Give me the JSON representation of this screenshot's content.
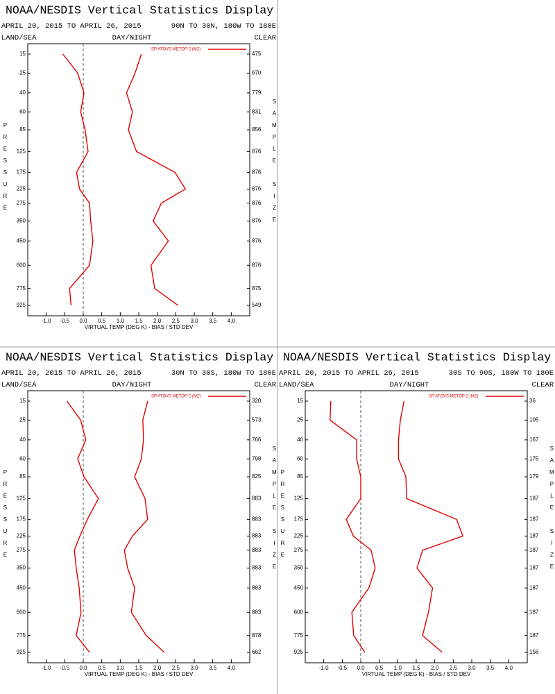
{
  "chart_data": [
    {
      "type": "profile",
      "title": "NOAA/NESDIS Vertical Statistics Display",
      "date_range": "APRIL 20, 2015 TO APRIL 26, 2015",
      "region": "90N TO 30N, 180W TO 180E",
      "surface": "LAND/SEA",
      "time_of_day": "DAY/NIGHT",
      "sky": "CLEAR",
      "y_label": "PRESSURE",
      "y2_label": "SAMPLE SIZE",
      "x_label": "VIRTUAL TEMP (DEG K) - BIAS / STD DEV",
      "levels": [
        15,
        25,
        40,
        60,
        85,
        125,
        175,
        225,
        275,
        350,
        450,
        600,
        775,
        925
      ],
      "sample_size": [
        475,
        670,
        779,
        831,
        856,
        876,
        876,
        876,
        876,
        876,
        876,
        876,
        875,
        549
      ],
      "xlim": [
        -1.5,
        4.5
      ],
      "xticks": [
        {
          "value": -1,
          "label": "-1.0"
        },
        {
          "value": -0.5,
          "label": "-0.5"
        },
        {
          "value": 0,
          "label": "0.0"
        },
        {
          "value": 0.5,
          "label": "0.5"
        },
        {
          "value": 1,
          "label": "1.0"
        },
        {
          "value": 1.5,
          "label": "1.5"
        },
        {
          "value": 2,
          "label": "2.0"
        },
        {
          "value": 2.5,
          "label": "2.5"
        },
        {
          "value": 3,
          "label": "3.0"
        },
        {
          "value": 3.5,
          "label": "3.5"
        },
        {
          "value": 4,
          "label": "4.0"
        }
      ],
      "series": [
        {
          "name": "SP ATOVS METOP-2 (M2)",
          "color": "#e00000",
          "bias": [
            -0.55,
            -0.15,
            0.02,
            -0.07,
            0.05,
            0.13,
            -0.18,
            -0.1,
            0.17,
            0.2,
            0.26,
            0.17,
            -0.37,
            -0.33
          ],
          "std_dev": [
            1.57,
            1.4,
            1.17,
            1.33,
            1.22,
            1.44,
            2.48,
            2.76,
            2.11,
            1.89,
            2.3,
            1.83,
            1.93,
            2.56
          ]
        }
      ]
    },
    {
      "type": "profile",
      "title": "NOAA/NESDIS Vertical Statistics Display",
      "date_range": "APRIL 20, 2015 TO APRIL 26, 2015",
      "region": "30N TO 30S, 180W TO 180E",
      "surface": "LAND/SEA",
      "time_of_day": "DAY/NIGHT",
      "sky": "CLEAR",
      "y_label": "PRESSURE",
      "y2_label": "SAMPLE SIZE",
      "x_label": "VIRTUAL TEMP (DEG K) - BIAS / STD DEV",
      "levels": [
        15,
        25,
        40,
        60,
        85,
        125,
        175,
        225,
        275,
        350,
        450,
        600,
        775,
        925
      ],
      "sample_size": [
        320,
        573,
        766,
        798,
        825,
        883,
        883,
        883,
        883,
        883,
        883,
        883,
        878,
        662
      ],
      "xlim": [
        -1.5,
        4.5
      ],
      "xticks": [
        {
          "value": -1,
          "label": "-1.0"
        },
        {
          "value": -0.5,
          "label": "-0.5"
        },
        {
          "value": 0,
          "label": "0.0"
        },
        {
          "value": 0.5,
          "label": "0.5"
        },
        {
          "value": 1,
          "label": "1.0"
        },
        {
          "value": 1.5,
          "label": "1.5"
        },
        {
          "value": 2,
          "label": "2.0"
        },
        {
          "value": 2.5,
          "label": "2.5"
        },
        {
          "value": 3,
          "label": "3.0"
        },
        {
          "value": 3.5,
          "label": "3.5"
        },
        {
          "value": 4,
          "label": "4.0"
        }
      ],
      "series": [
        {
          "name": "SP ATOVS METOP-2 (M2)",
          "color": "#e00000",
          "bias": [
            -0.44,
            -0.07,
            0.07,
            -0.15,
            0.02,
            0.41,
            0.11,
            -0.09,
            -0.24,
            -0.19,
            -0.11,
            -0.06,
            -0.19,
            0.17
          ],
          "std_dev": [
            1.74,
            1.61,
            1.63,
            1.57,
            1.39,
            1.67,
            1.74,
            1.33,
            1.11,
            1.2,
            1.39,
            1.3,
            1.7,
            2.19
          ]
        }
      ]
    },
    {
      "type": "profile",
      "title": "NOAA/NESDIS Vertical Statistics Display",
      "date_range": "APRIL 20, 2015 TO APRIL 26, 2015",
      "region": "30S TO 90S, 180W TO 180E",
      "surface": "LAND/SEA",
      "time_of_day": "DAY/NIGHT",
      "sky": "CLEAR",
      "y_label": "PRESSURE",
      "y2_label": "SAMPLE SIZE",
      "x_label": "VIRTUAL TEMP (DEG K) - BIAS / STD DEV",
      "levels": [
        15,
        25,
        40,
        60,
        85,
        125,
        175,
        225,
        275,
        350,
        450,
        600,
        775,
        925
      ],
      "sample_size": [
        36,
        105,
        167,
        175,
        179,
        187,
        187,
        187,
        187,
        187,
        187,
        187,
        187,
        156
      ],
      "xlim": [
        -1.5,
        4.5
      ],
      "xticks": [
        {
          "value": -1,
          "label": "-1.0"
        },
        {
          "value": -0.5,
          "label": "-0.5"
        },
        {
          "value": 0,
          "label": "0.0"
        },
        {
          "value": 0.5,
          "label": "0.5"
        },
        {
          "value": 1,
          "label": "1.0"
        },
        {
          "value": 1.5,
          "label": "1.5"
        },
        {
          "value": 2,
          "label": "2.0"
        },
        {
          "value": 2.5,
          "label": "2.5"
        },
        {
          "value": 3,
          "label": "3.0"
        },
        {
          "value": 3.5,
          "label": "3.5"
        },
        {
          "value": 4,
          "label": "4.0"
        }
      ],
      "series": [
        {
          "name": "SP ATOVS METOP-2 (M2)",
          "color": "#e00000",
          "bias": [
            -0.81,
            -0.83,
            -0.11,
            -0.11,
            0,
            0,
            -0.39,
            -0.2,
            0.28,
            0.39,
            0.22,
            -0.24,
            -0.19,
            0.11
          ],
          "std_dev": [
            1.17,
            1.07,
            1.02,
            1.02,
            1.22,
            1.24,
            2.59,
            2.76,
            1.67,
            1.52,
            1.94,
            1.83,
            1.67,
            2.2
          ]
        }
      ]
    }
  ]
}
